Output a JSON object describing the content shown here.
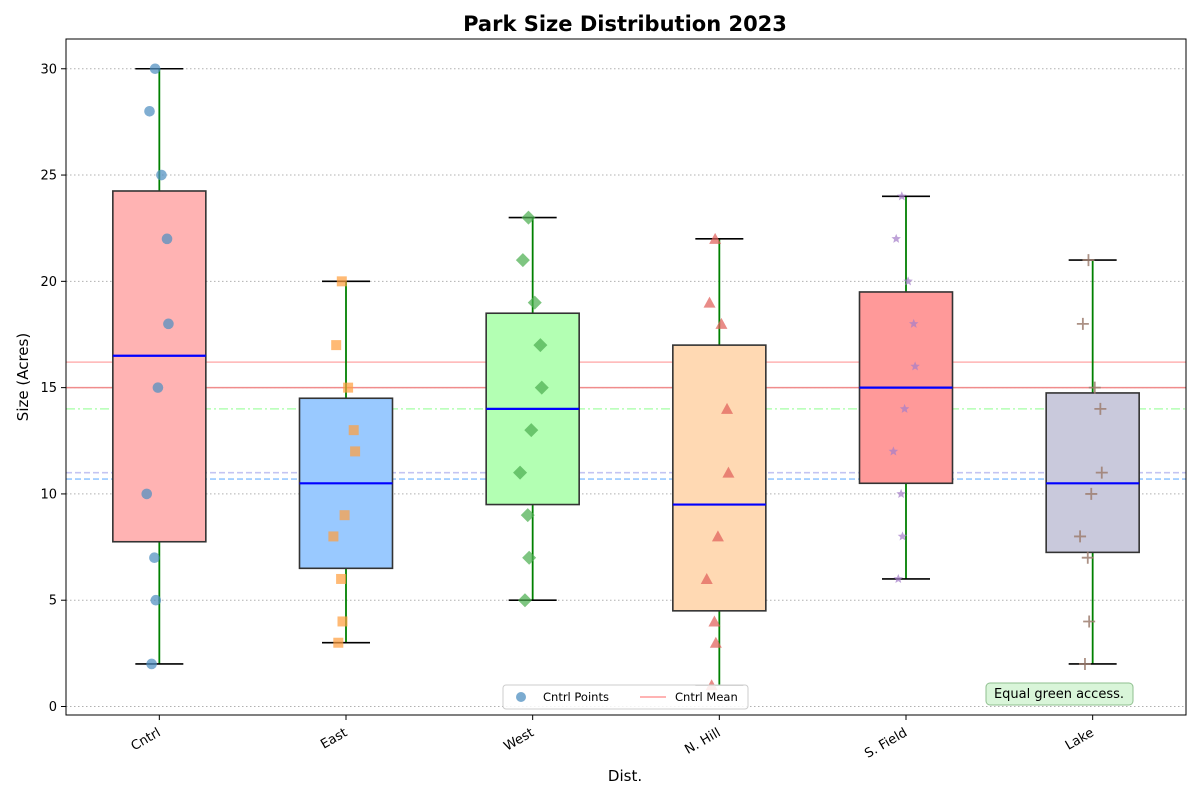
{
  "chart_data": {
    "type": "box",
    "title": "Park Size Distribution 2023",
    "xlabel": "Dist.",
    "ylabel": "Size (Acres)",
    "ylim": [
      -0.4,
      31.4
    ],
    "yticks": [
      0,
      5,
      10,
      15,
      20,
      25,
      30
    ],
    "grid": "y-dotted",
    "categories": [
      "Cntrl",
      "East",
      "West",
      "N. Hill",
      "S. Field",
      "Lake"
    ],
    "boxes": [
      {
        "category": "Cntrl",
        "q1": 7.75,
        "median": 16.5,
        "q3": 24.25,
        "whisker_low": 2,
        "whisker_high": 30,
        "fill": "#ffb3b3",
        "marker": "circle",
        "point_color": "#4f8fc0",
        "points": [
          30,
          28,
          25,
          22,
          18,
          15,
          10,
          7,
          5,
          2
        ]
      },
      {
        "category": "East",
        "q1": 6.5,
        "median": 10.5,
        "q3": 14.5,
        "whisker_low": 3,
        "whisker_high": 20,
        "fill": "#99c9ff",
        "marker": "square",
        "point_color": "#ff9f40",
        "points": [
          20,
          17,
          15,
          13,
          12,
          9,
          8,
          6,
          4,
          3
        ]
      },
      {
        "category": "West",
        "q1": 9.5,
        "median": 14,
        "q3": 18.5,
        "whisker_low": 5,
        "whisker_high": 23,
        "fill": "#b3ffb3",
        "marker": "diamond",
        "point_color": "#4caf50",
        "points": [
          23,
          21,
          19,
          17,
          15,
          13,
          11,
          9,
          7,
          5
        ]
      },
      {
        "category": "N. Hill",
        "q1": 4.5,
        "median": 9.5,
        "q3": 17,
        "whisker_low": 1,
        "whisker_high": 22,
        "fill": "#ffd9b3",
        "marker": "triangle",
        "point_color": "#e0605a",
        "points": [
          22,
          19,
          18,
          14,
          11,
          8,
          6,
          4,
          3,
          1
        ]
      },
      {
        "category": "S. Field",
        "q1": 10.5,
        "median": 15,
        "q3": 19.5,
        "whisker_low": 6,
        "whisker_high": 24,
        "fill": "#ff9999",
        "marker": "star",
        "point_color": "#a57ec9",
        "points": [
          24,
          22,
          20,
          18,
          16,
          14,
          12,
          10,
          8,
          6
        ]
      },
      {
        "category": "Lake",
        "q1": 7.25,
        "median": 10.5,
        "q3": 14.75,
        "whisker_low": 2,
        "whisker_high": 21,
        "fill": "#c9c9dc",
        "marker": "plus",
        "point_color": "#9e7e70",
        "points": [
          21,
          18,
          15,
          14,
          11,
          10,
          8,
          7,
          4,
          2
        ]
      }
    ],
    "mean_lines": [
      {
        "value": 16.2,
        "color": "#ffb3b3",
        "style": "solid"
      },
      {
        "value": 15.0,
        "color": "#f08c8c",
        "style": "solid"
      },
      {
        "value": 14.0,
        "color": "#b3ffb3",
        "style": "dashdot"
      },
      {
        "value": 11.0,
        "color": "#c4c4f2",
        "style": "dashed"
      },
      {
        "value": 10.7,
        "color": "#99c9ff",
        "style": "dashed"
      }
    ],
    "legend": {
      "placement": "lower-center",
      "entries": [
        {
          "label": "Cntrl Points",
          "kind": "marker",
          "color": "#4f8fc0"
        },
        {
          "label": "Cntrl Mean",
          "kind": "line",
          "color": "#ffb3b3"
        }
      ]
    },
    "annotation": {
      "text": "Equal green access.",
      "placement": "lower-right",
      "fill": "#d9f5d9"
    },
    "colors": {
      "median": "#0000ff",
      "whisker": "#008000",
      "cap": "#000000",
      "box_edge": "#333333"
    }
  }
}
